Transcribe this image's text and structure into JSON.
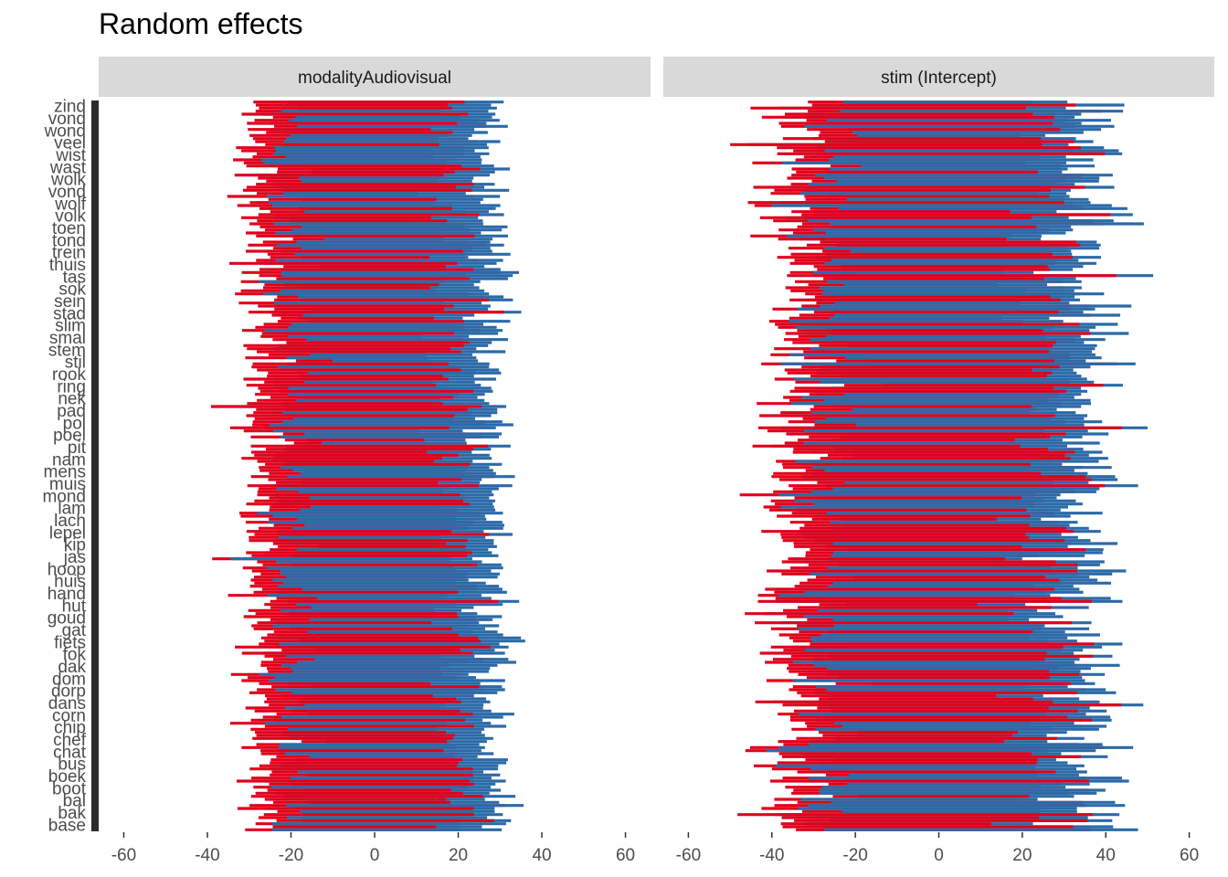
{
  "chart_data": {
    "type": "bar",
    "title": "Random effects",
    "orientation": "horizontal-ranges",
    "xlim": [
      -66,
      66
    ],
    "x_ticks": [
      -60,
      -40,
      -20,
      0,
      20,
      40,
      60
    ],
    "n_levels": 240,
    "colors": {
      "negative": "#e0001b",
      "positive": "#2b6aa8",
      "strip_bg": "#d9d9d9"
    },
    "y_labels_visible": [
      "zind",
      "vond",
      "wond",
      "veel",
      "wist",
      "wast",
      "wolk",
      "vond",
      "wolf",
      "volk",
      "toen",
      "tond",
      "trein",
      "thuis",
      "tas",
      "sok",
      "sein",
      "stad",
      "slim",
      "smal",
      "stem",
      "stil",
      "rook",
      "ring",
      "nek",
      "pad",
      "pol",
      "poel",
      "pit",
      "nam",
      "mens",
      "muis",
      "mond",
      "lam",
      "lach",
      "lepel",
      "kip",
      "jas",
      "hoop",
      "huis",
      "hand",
      "hut",
      "goud",
      "gat",
      "fiets",
      "fok",
      "dak",
      "dom",
      "dorp",
      "dans",
      "corn",
      "chip",
      "chef",
      "chat",
      "bus",
      "boek",
      "boot",
      "bal",
      "bak",
      "base"
    ],
    "facets": [
      {
        "label": "modalityAudiovisual",
        "series": [
          {
            "name": "negative",
            "color": "#e0001b",
            "center": -28,
            "spread": 3.2
          },
          {
            "name": "positive",
            "color": "#2b6aa8",
            "center": 28,
            "spread": 3.0
          }
        ]
      },
      {
        "label": "stim (Intercept)",
        "series": [
          {
            "name": "negative",
            "color": "#e0001b",
            "center": -36,
            "spread": 5.5
          },
          {
            "name": "positive",
            "color": "#2b6aa8",
            "center": 36,
            "spread": 5.5
          }
        ]
      }
    ]
  }
}
